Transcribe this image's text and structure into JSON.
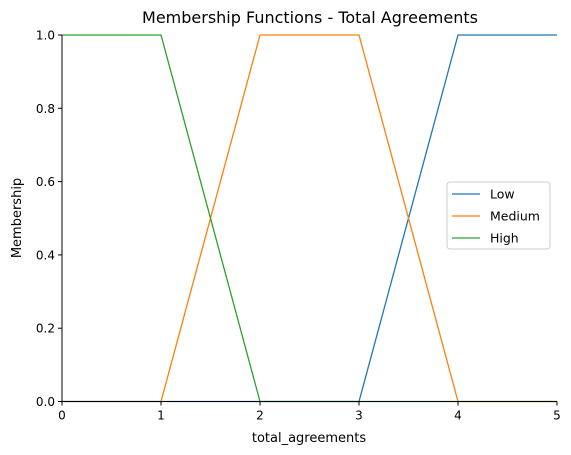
{
  "chart_data": {
    "type": "line",
    "title": "Membership Functions - Total Agreements",
    "xlabel": "total_agreements",
    "ylabel": "Membership",
    "xlim": [
      0,
      5
    ],
    "ylim": [
      0,
      1
    ],
    "x_ticks": [
      "0",
      "1",
      "2",
      "3",
      "4",
      "5"
    ],
    "y_ticks": [
      "0.0",
      "0.2",
      "0.4",
      "0.6",
      "0.8",
      "1.0"
    ],
    "grid": false,
    "legend_position": "center-right",
    "series": [
      {
        "name": "Low",
        "color": "#1f77b4",
        "x": [
          0,
          3,
          4,
          5
        ],
        "y": [
          0,
          0,
          1,
          1
        ]
      },
      {
        "name": "Medium",
        "color": "#ff7f0e",
        "x": [
          0,
          1,
          2,
          3,
          4,
          5
        ],
        "y": [
          0,
          0,
          1,
          1,
          0,
          0
        ]
      },
      {
        "name": "High",
        "color": "#2ca02c",
        "x": [
          0,
          1,
          2,
          5
        ],
        "y": [
          1,
          1,
          0,
          0
        ]
      }
    ]
  }
}
